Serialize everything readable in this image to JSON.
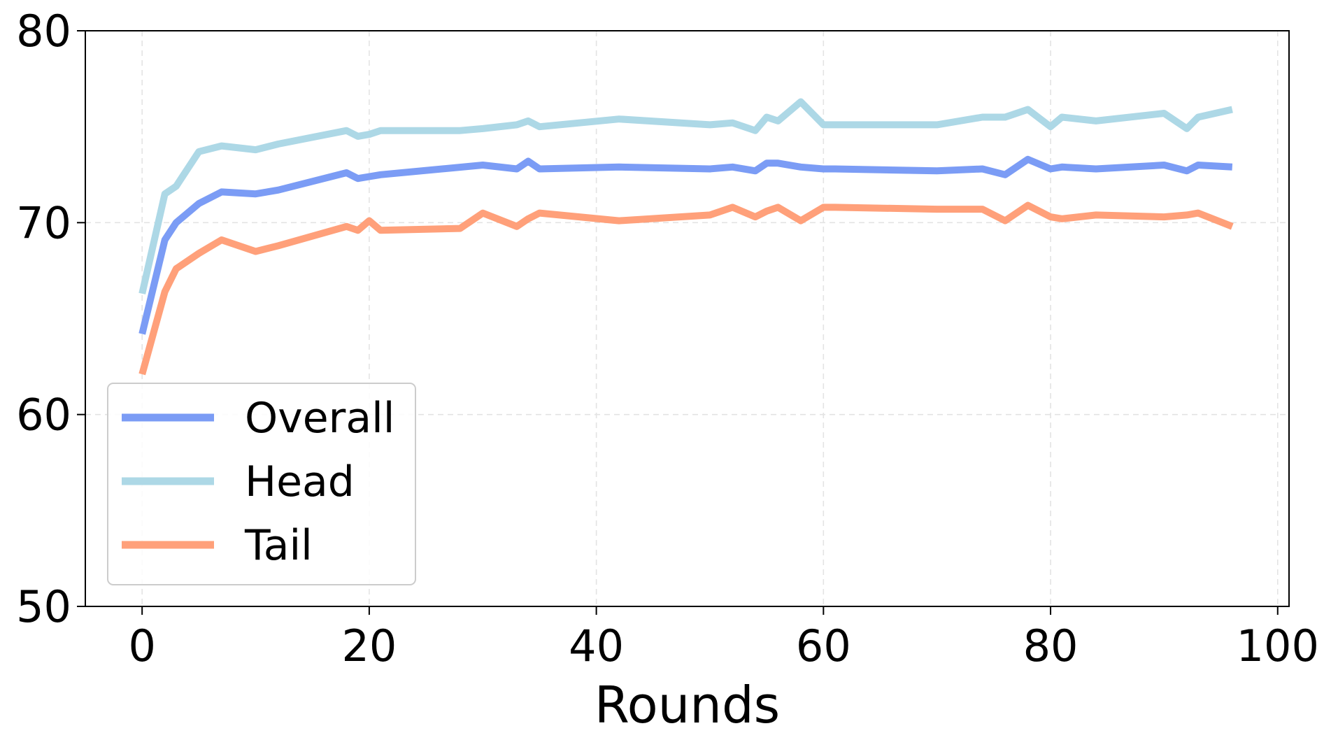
{
  "chart_data": {
    "type": "line",
    "title": "",
    "xlabel": "Rounds",
    "ylabel": "",
    "xlim": [
      -5,
      101
    ],
    "ylim": [
      50,
      80
    ],
    "xticks": [
      0,
      20,
      40,
      60,
      80,
      100
    ],
    "yticks": [
      50,
      60,
      70,
      80
    ],
    "grid": true,
    "legend_position": "lower-left",
    "series": [
      {
        "name": "Overall",
        "color": "#7b9cf5",
        "x": [
          0,
          2,
          3,
          5,
          7,
          10,
          12,
          18,
          19,
          20,
          21,
          30,
          33,
          34,
          35,
          42,
          50,
          52,
          54,
          55,
          56,
          58,
          60,
          61,
          70,
          74,
          76,
          78,
          80,
          81,
          84,
          90,
          92,
          93,
          96
        ],
        "y": [
          64.2,
          69.1,
          70.0,
          71.0,
          71.6,
          71.5,
          71.7,
          72.6,
          72.3,
          72.4,
          72.5,
          73.0,
          72.8,
          73.2,
          72.8,
          72.9,
          72.8,
          72.9,
          72.7,
          73.1,
          73.1,
          72.9,
          72.8,
          72.8,
          72.7,
          72.8,
          72.5,
          73.3,
          72.8,
          72.9,
          72.8,
          73.0,
          72.7,
          73.0,
          72.9
        ]
      },
      {
        "name": "Head",
        "color": "#add8e6",
        "x": [
          0,
          2,
          3,
          5,
          7,
          10,
          12,
          18,
          19,
          20,
          21,
          28,
          30,
          33,
          34,
          35,
          42,
          50,
          52,
          54,
          55,
          56,
          58,
          60,
          61,
          70,
          74,
          76,
          78,
          80,
          81,
          84,
          90,
          92,
          93,
          96
        ],
        "y": [
          66.3,
          71.5,
          71.9,
          73.7,
          74.0,
          73.8,
          74.1,
          74.8,
          74.5,
          74.6,
          74.8,
          74.8,
          74.9,
          75.1,
          75.3,
          75.0,
          75.4,
          75.1,
          75.2,
          74.8,
          75.5,
          75.3,
          76.3,
          75.1,
          75.1,
          75.1,
          75.5,
          75.5,
          75.9,
          75.0,
          75.5,
          75.3,
          75.7,
          74.9,
          75.5,
          75.9
        ]
      },
      {
        "name": "Tail",
        "color": "#ffa07a",
        "x": [
          0,
          2,
          3,
          5,
          7,
          10,
          12,
          18,
          19,
          20,
          21,
          28,
          30,
          33,
          34,
          35,
          42,
          50,
          52,
          54,
          55,
          56,
          58,
          60,
          61,
          70,
          74,
          76,
          78,
          80,
          81,
          84,
          90,
          92,
          93,
          96
        ],
        "y": [
          62.1,
          66.4,
          67.6,
          68.4,
          69.1,
          68.5,
          68.8,
          69.8,
          69.6,
          70.1,
          69.6,
          69.7,
          70.5,
          69.8,
          70.2,
          70.5,
          70.1,
          70.4,
          70.8,
          70.3,
          70.6,
          70.8,
          70.1,
          70.8,
          70.8,
          70.7,
          70.7,
          70.1,
          70.9,
          70.3,
          70.2,
          70.4,
          70.3,
          70.4,
          70.5,
          69.8
        ]
      }
    ]
  }
}
